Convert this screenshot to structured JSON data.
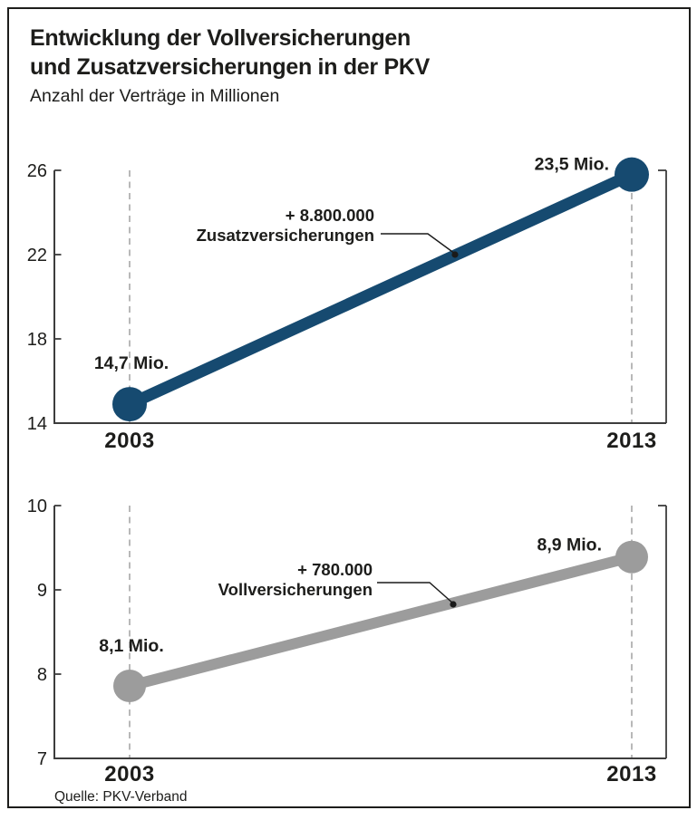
{
  "header": {
    "title_line1": "Entwicklung der Vollversicherungen",
    "title_line2": "und Zusatzversicherungen in der PKV",
    "subtitle": "Anzahl der Verträge in Millionen"
  },
  "source": "Quelle: PKV-Verband",
  "colors": {
    "navy": "#164a70",
    "gray": "#9c9c9c",
    "axis": "#3d3d3d",
    "dashed_guide": "#9b9b9b",
    "text": "#1d1d1b",
    "leader": "#1a1a1a",
    "background": "#ffffff"
  },
  "chart_data": [
    {
      "type": "line",
      "series_name": "Zusatzversicherungen",
      "x": [
        "2003",
        "2013"
      ],
      "values": [
        14.7,
        23.5
      ],
      "unit": "Mio.",
      "point_labels": [
        "14,7 Mio.",
        "23,5 Mio."
      ],
      "delta_value": 8800000,
      "annotation_line1": "+ 8.800.000",
      "annotation_line2": "Zusatzversicherungen",
      "ylim": [
        14,
        26
      ],
      "yticks": [
        26,
        22,
        18,
        14
      ],
      "line_color": "#164a70",
      "drawn_values": [
        14.9,
        25.8
      ],
      "grid": false,
      "legend": false
    },
    {
      "type": "line",
      "series_name": "Vollversicherungen",
      "x": [
        "2003",
        "2013"
      ],
      "values": [
        8.1,
        8.9
      ],
      "unit": "Mio.",
      "point_labels": [
        "8,1 Mio.",
        "8,9 Mio."
      ],
      "delta_value": 780000,
      "annotation_line1": "+ 780.000",
      "annotation_line2": "Vollversicherungen",
      "ylim": [
        7,
        10
      ],
      "yticks": [
        10,
        9,
        8,
        7
      ],
      "line_color": "#9c9c9c",
      "drawn_values": [
        7.86,
        9.39
      ],
      "grid": false,
      "legend": false
    }
  ]
}
